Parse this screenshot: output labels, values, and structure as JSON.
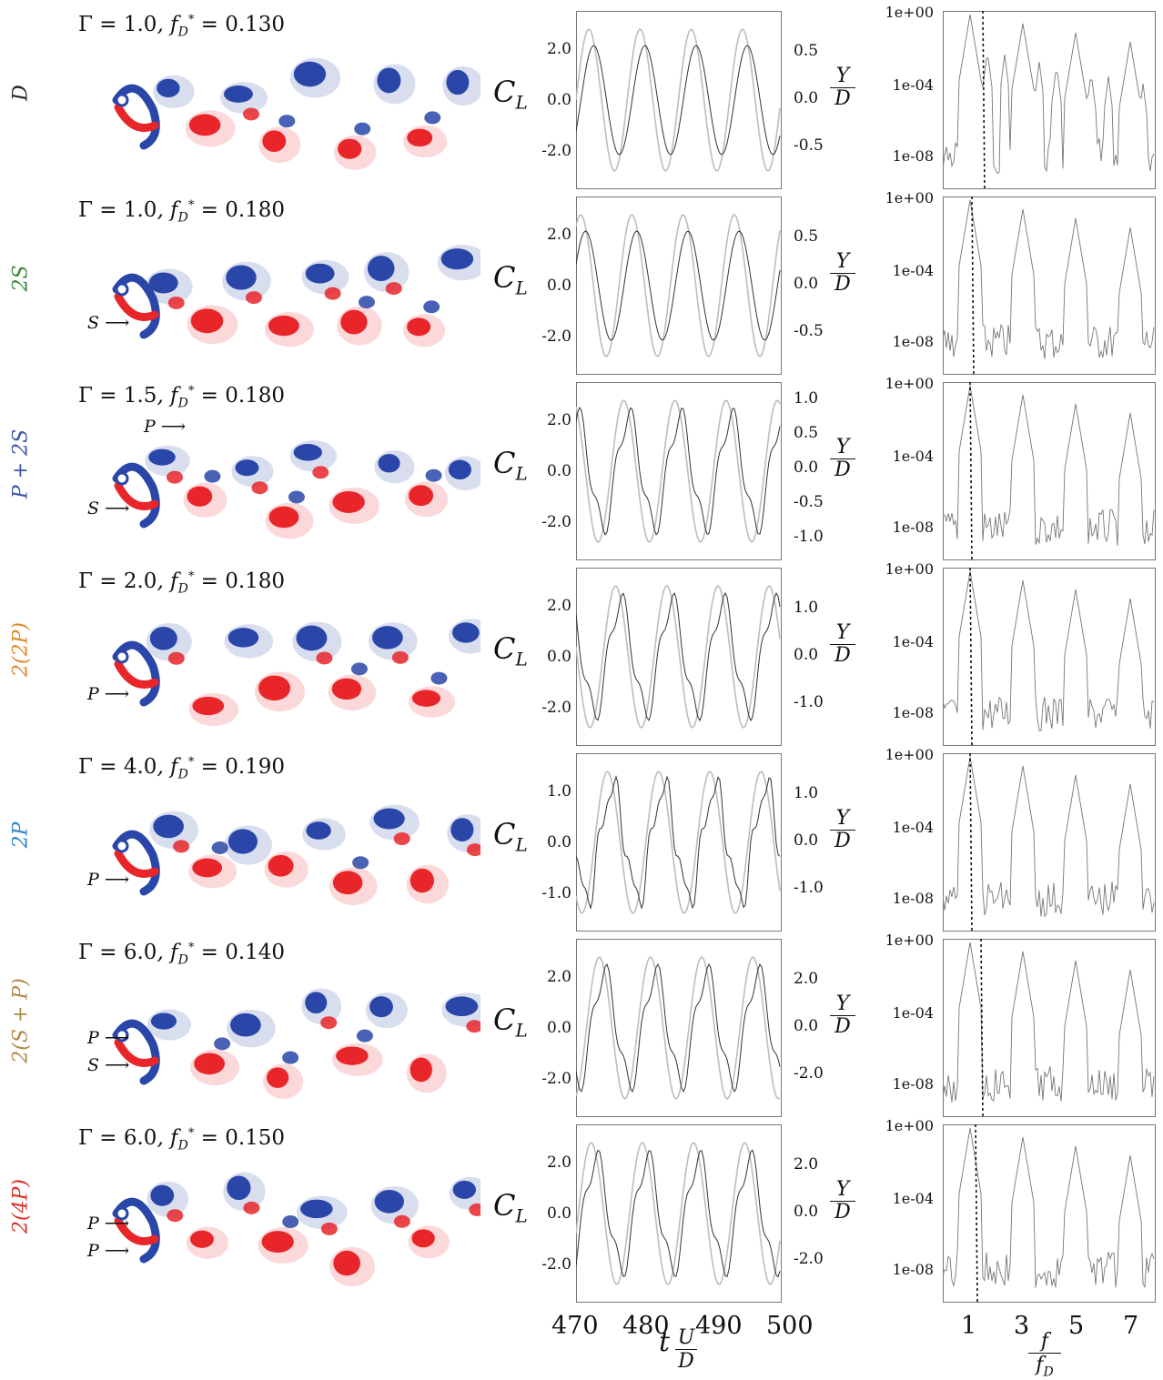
{
  "rows": [
    {
      "mode": "D",
      "mode_color": "#222222",
      "gamma": "1.0",
      "fd": "0.130",
      "cl_ticks": [
        "2.0",
        "0.0",
        "-2.0"
      ],
      "y_ticks": [
        "0.5",
        "0.0",
        "-0.5"
      ],
      "spec_ticks": [
        "1e+00",
        "1e-04",
        "1e-08"
      ],
      "labels": []
    },
    {
      "mode": "2S",
      "mode_color": "#3a8a3a",
      "gamma": "1.0",
      "fd": "0.180",
      "cl_ticks": [
        "2.0",
        "0.0",
        "-2.0"
      ],
      "y_ticks": [
        "0.5",
        "0.0",
        "-0.5"
      ],
      "spec_ticks": [
        "1e+00",
        "1e-04",
        "1e-08"
      ],
      "labels": [
        "S"
      ]
    },
    {
      "mode": "P + 2S",
      "mode_color": "#3b55a8",
      "gamma": "1.5",
      "fd": "0.180",
      "cl_ticks": [
        "2.0",
        "0.0",
        "-2.0"
      ],
      "y_ticks": [
        "1.0",
        "0.5",
        "0.0",
        "-0.5",
        "-1.0"
      ],
      "spec_ticks": [
        "1e+00",
        "1e-04",
        "1e-08"
      ],
      "labels": [
        "P",
        "S"
      ]
    },
    {
      "mode": "2(2P)",
      "mode_color": "#e08a2a",
      "gamma": "2.0",
      "fd": "0.180",
      "cl_ticks": [
        "2.0",
        "0.0",
        "-2.0"
      ],
      "y_ticks": [
        "1.0",
        "0.0",
        "-1.0"
      ],
      "spec_ticks": [
        "1e+00",
        "1e-04",
        "1e-08"
      ],
      "labels": [
        "P"
      ]
    },
    {
      "mode": "2P",
      "mode_color": "#2f86c8",
      "gamma": "4.0",
      "fd": "0.190",
      "cl_ticks": [
        "1.0",
        "0.0",
        "-1.0"
      ],
      "y_ticks": [
        "1.0",
        "0.0",
        "-1.0"
      ],
      "spec_ticks": [
        "1e+00",
        "1e-04",
        "1e-08"
      ],
      "labels": [
        "P"
      ]
    },
    {
      "mode": "2(S + P)",
      "mode_color": "#b08a4a",
      "gamma": "6.0",
      "fd": "0.140",
      "cl_ticks": [
        "2.0",
        "0.0",
        "-2.0"
      ],
      "y_ticks": [
        "2.0",
        "0.0",
        "-2.0"
      ],
      "spec_ticks": [
        "1e+00",
        "1e-04",
        "1e-08"
      ],
      "labels": [
        "P",
        "S"
      ]
    },
    {
      "mode": "2(4P)",
      "mode_color": "#d8322a",
      "gamma": "6.0",
      "fd": "0.150",
      "cl_ticks": [
        "2.0",
        "0.0",
        "-2.0"
      ],
      "y_ticks": [
        "2.0",
        "0.0",
        "-2.0"
      ],
      "spec_ticks": [
        "1e+00",
        "1e-04",
        "1e-08"
      ],
      "labels": [
        "P",
        "P"
      ]
    }
  ],
  "symbols": {
    "gamma_prefix": "Γ = ",
    "fd_prefix": ", f",
    "fd_sub": "D",
    "fd_sup": "*",
    "eq": " = ",
    "cl": "C",
    "cl_sub": "L",
    "yd_num": "Y",
    "yd_den": "D"
  },
  "axes": {
    "time_ticks": [
      "470",
      "480",
      "490",
      "500"
    ],
    "time_label_t": "t",
    "time_label_num": "U",
    "time_label_den": "D",
    "freq_ticks": [
      "1",
      "3",
      "5",
      "7"
    ],
    "freq_label_num": "f",
    "freq_label_den": "f",
    "freq_label_den_sub": "D"
  },
  "colors": {
    "red": "#e8262a",
    "blue": "#2a46a8",
    "trace_dark": "#333333",
    "trace_light": "#bdbdbd"
  }
}
